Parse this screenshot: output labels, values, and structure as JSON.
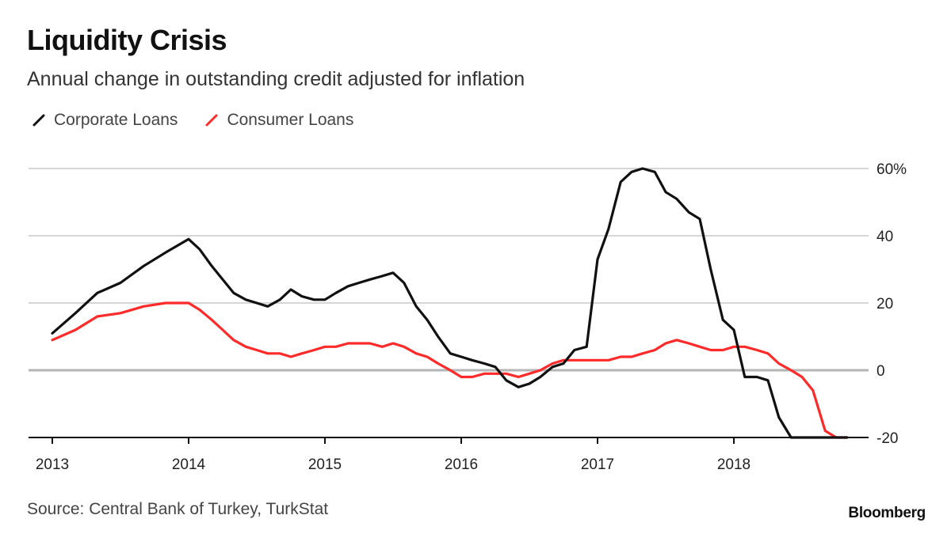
{
  "header": {
    "title": "Liquidity Crisis",
    "subtitle": "Annual change in outstanding credit adjusted for inflation"
  },
  "footer": {
    "source": "Source: Central Bank of Turkey, TurkStat",
    "brand": "Bloomberg"
  },
  "colors": {
    "corporate": "#111111",
    "consumer": "#ff2a2a",
    "grid": "#d6d6d6",
    "zero": "#b5b5b5"
  },
  "chart_data": {
    "type": "line",
    "title": "Liquidity Crisis",
    "subtitle": "Annual change in outstanding credit adjusted for inflation",
    "xlabel": "",
    "ylabel": "",
    "xlim": [
      2013,
      2018.85
    ],
    "ylim": [
      -20,
      60
    ],
    "x_ticks": [
      {
        "value": 2013,
        "label": "2013"
      },
      {
        "value": 2014,
        "label": "2014"
      },
      {
        "value": 2015,
        "label": "2015"
      },
      {
        "value": 2016,
        "label": "2016"
      },
      {
        "value": 2017,
        "label": "2017"
      },
      {
        "value": 2018,
        "label": "2018"
      }
    ],
    "y_ticks": [
      {
        "value": 60,
        "label": "60%"
      },
      {
        "value": 40,
        "label": "40"
      },
      {
        "value": 20,
        "label": "20"
      },
      {
        "value": 0,
        "label": "0"
      },
      {
        "value": -20,
        "label": "-20"
      }
    ],
    "grid": true,
    "legend_position": "top-left",
    "series": [
      {
        "name": "Corporate Loans",
        "color": "#111111",
        "x": [
          2013.0,
          2013.17,
          2013.33,
          2013.5,
          2013.67,
          2013.83,
          2014.0,
          2014.08,
          2014.17,
          2014.25,
          2014.33,
          2014.42,
          2014.5,
          2014.58,
          2014.67,
          2014.75,
          2014.83,
          2014.92,
          2015.0,
          2015.08,
          2015.17,
          2015.25,
          2015.33,
          2015.42,
          2015.5,
          2015.58,
          2015.67,
          2015.75,
          2015.83,
          2015.92,
          2016.0,
          2016.08,
          2016.17,
          2016.25,
          2016.33,
          2016.42,
          2016.5,
          2016.58,
          2016.67,
          2016.75,
          2016.83,
          2016.92,
          2017.0,
          2017.08,
          2017.17,
          2017.25,
          2017.33,
          2017.42,
          2017.5,
          2017.58,
          2017.67,
          2017.75,
          2017.83,
          2017.92,
          2018.0,
          2018.08,
          2018.17,
          2018.25,
          2018.33,
          2018.42,
          2018.5,
          2018.58,
          2018.67,
          2018.75,
          2018.83
        ],
        "values": [
          11,
          17,
          23,
          26,
          31,
          35,
          39,
          36,
          31,
          27,
          23,
          21,
          20,
          19,
          21,
          24,
          22,
          21,
          21,
          23,
          25,
          26,
          27,
          28,
          29,
          26,
          19,
          15,
          10,
          5,
          4,
          3,
          2,
          1,
          -3,
          -5,
          -4,
          -2,
          1,
          2,
          6,
          7,
          33,
          42,
          56,
          59,
          60,
          59,
          53,
          51,
          47,
          45,
          30,
          15,
          12,
          -2,
          -2,
          -3,
          -14,
          -20,
          -20,
          -20,
          -20,
          -20,
          -20
        ],
        "note": ""
      },
      {
        "name": "Consumer Loans",
        "color": "#ff2a2a",
        "x": [
          2013.0,
          2013.17,
          2013.33,
          2013.5,
          2013.67,
          2013.83,
          2014.0,
          2014.08,
          2014.17,
          2014.25,
          2014.33,
          2014.42,
          2014.5,
          2014.58,
          2014.67,
          2014.75,
          2014.83,
          2014.92,
          2015.0,
          2015.08,
          2015.17,
          2015.25,
          2015.33,
          2015.42,
          2015.5,
          2015.58,
          2015.67,
          2015.75,
          2015.83,
          2015.92,
          2016.0,
          2016.08,
          2016.17,
          2016.25,
          2016.33,
          2016.42,
          2016.5,
          2016.58,
          2016.67,
          2016.75,
          2016.83,
          2016.92,
          2017.0,
          2017.08,
          2017.17,
          2017.25,
          2017.33,
          2017.42,
          2017.5,
          2017.58,
          2017.67,
          2017.75,
          2017.83,
          2017.92,
          2018.0,
          2018.08,
          2018.17,
          2018.25,
          2018.33,
          2018.42,
          2018.5,
          2018.58,
          2018.67,
          2018.75,
          2018.83
        ],
        "values": [
          9,
          12,
          16,
          17,
          19,
          20,
          20,
          18,
          15,
          12,
          9,
          7,
          6,
          5,
          5,
          4,
          5,
          6,
          7,
          7,
          8,
          8,
          8,
          7,
          8,
          7,
          5,
          4,
          2,
          0,
          -2,
          -2,
          -1,
          -1,
          -1,
          -2,
          -1,
          0,
          2,
          3,
          3,
          3,
          3,
          3,
          4,
          4,
          5,
          6,
          8,
          9,
          8,
          7,
          6,
          6,
          7,
          7,
          6,
          5,
          2,
          0,
          -2,
          -6,
          -18,
          -20,
          -20
        ]
      }
    ]
  }
}
